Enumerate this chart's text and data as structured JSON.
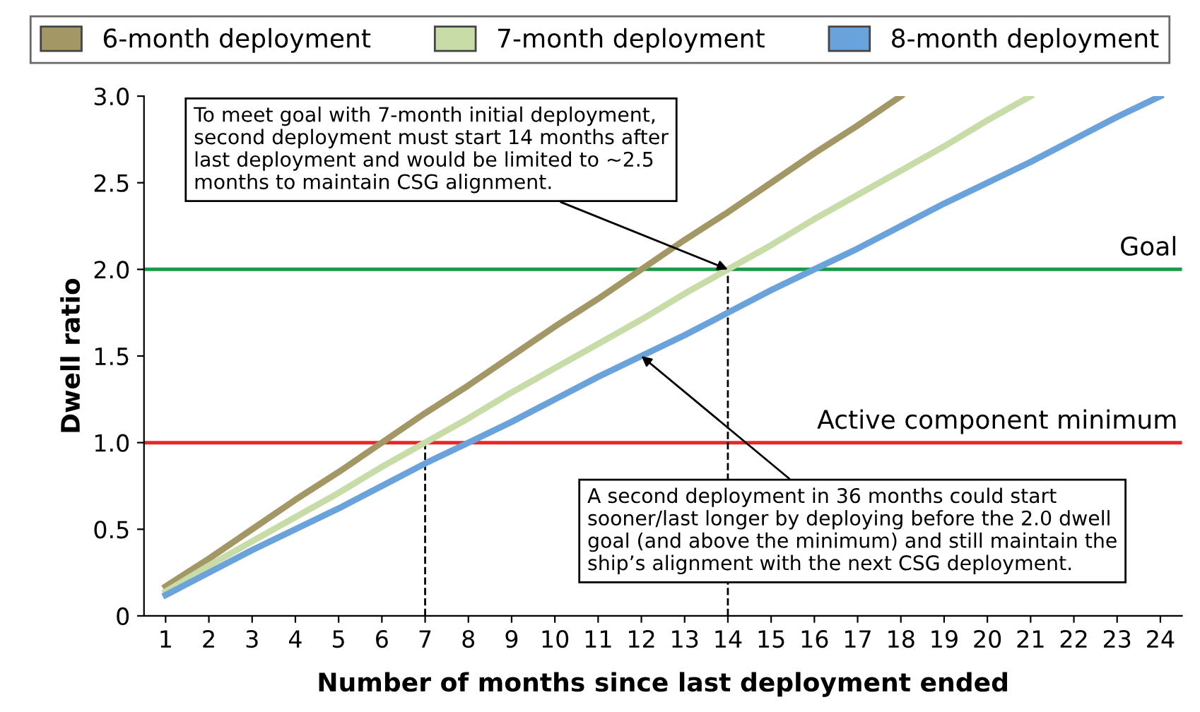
{
  "chart_data": {
    "type": "line",
    "xlabel": "Number of months since last deployment ended",
    "ylabel": "Dwell ratio",
    "series": [
      {
        "name": "6-month deployment",
        "color": "#a39766",
        "x": [
          1,
          2,
          3,
          4,
          5,
          6,
          7,
          8,
          9,
          10,
          11,
          12,
          13,
          14,
          15,
          16,
          17,
          18
        ],
        "values": [
          0.17,
          0.33,
          0.5,
          0.67,
          0.83,
          1.0,
          1.17,
          1.33,
          1.5,
          1.67,
          1.83,
          2.0,
          2.17,
          2.33,
          2.5,
          2.67,
          2.83,
          3.0
        ]
      },
      {
        "name": "7-month deployment",
        "color": "#c8dca8",
        "x": [
          1,
          2,
          3,
          4,
          5,
          6,
          7,
          8,
          9,
          10,
          11,
          12,
          13,
          14,
          15,
          16,
          17,
          18,
          19,
          20,
          21
        ],
        "values": [
          0.14,
          0.29,
          0.43,
          0.57,
          0.71,
          0.86,
          1.0,
          1.14,
          1.29,
          1.43,
          1.57,
          1.71,
          1.86,
          2.0,
          2.14,
          2.29,
          2.43,
          2.57,
          2.71,
          2.86,
          3.0
        ]
      },
      {
        "name": "8-month deployment",
        "color": "#6aa3dc",
        "x": [
          1,
          2,
          3,
          4,
          5,
          6,
          7,
          8,
          9,
          10,
          11,
          12,
          13,
          14,
          15,
          16,
          17,
          18,
          19,
          20,
          21,
          22,
          23,
          24
        ],
        "values": [
          0.12,
          0.25,
          0.38,
          0.5,
          0.62,
          0.75,
          0.88,
          1.0,
          1.12,
          1.25,
          1.38,
          1.5,
          1.62,
          1.75,
          1.88,
          2.0,
          2.12,
          2.25,
          2.38,
          2.5,
          2.62,
          2.75,
          2.88,
          3.0
        ]
      }
    ],
    "xlim": [
      0.5,
      24.5
    ],
    "xticks": [
      1,
      2,
      3,
      4,
      5,
      6,
      7,
      8,
      9,
      10,
      11,
      12,
      13,
      14,
      15,
      16,
      17,
      18,
      19,
      20,
      21,
      22,
      23,
      24
    ],
    "ylim": [
      0,
      3.0
    ],
    "yticks": [
      0,
      {
        "value": 0.5,
        "label": "0.5"
      },
      {
        "value": 1,
        "label": "1.0"
      },
      {
        "value": 1.5,
        "label": "1.5"
      },
      {
        "value": 2,
        "label": "2.0"
      },
      {
        "value": 2.5,
        "label": "2.5"
      },
      {
        "value": 3,
        "label": "3.0"
      }
    ],
    "ref_lines": [
      {
        "axis": "y",
        "value": 2.0,
        "label": "Goal",
        "color": "#1a9a48"
      },
      {
        "axis": "y",
        "value": 1.0,
        "label": "Active component minimum",
        "color": "#e8262b"
      },
      {
        "axis": "x",
        "value": 7,
        "label": null,
        "color": "#000000",
        "line_style": "dashed"
      },
      {
        "axis": "x",
        "value": 14,
        "label": null,
        "color": "#000000",
        "line_style": "dashed"
      }
    ],
    "annotations": [
      {
        "text": "To meet goal with 7-month initial deployment,\nsecond deployment must start 14 months after\nlast deployment and would be limited to ~2.5\nmonths to maintain CSG alignment.",
        "x": 14,
        "y": 2.0
      },
      {
        "text": "A second deployment in 36 months could start\nsooner/last longer by deploying before the 2.0 dwell\ngoal (and above the minimum) and still maintain the\nship’s alignment with the next CSG deployment.",
        "x": 12,
        "y": 1.5
      }
    ],
    "legend": "top",
    "grid": false,
    "marker": "none",
    "line_style": "solid"
  }
}
